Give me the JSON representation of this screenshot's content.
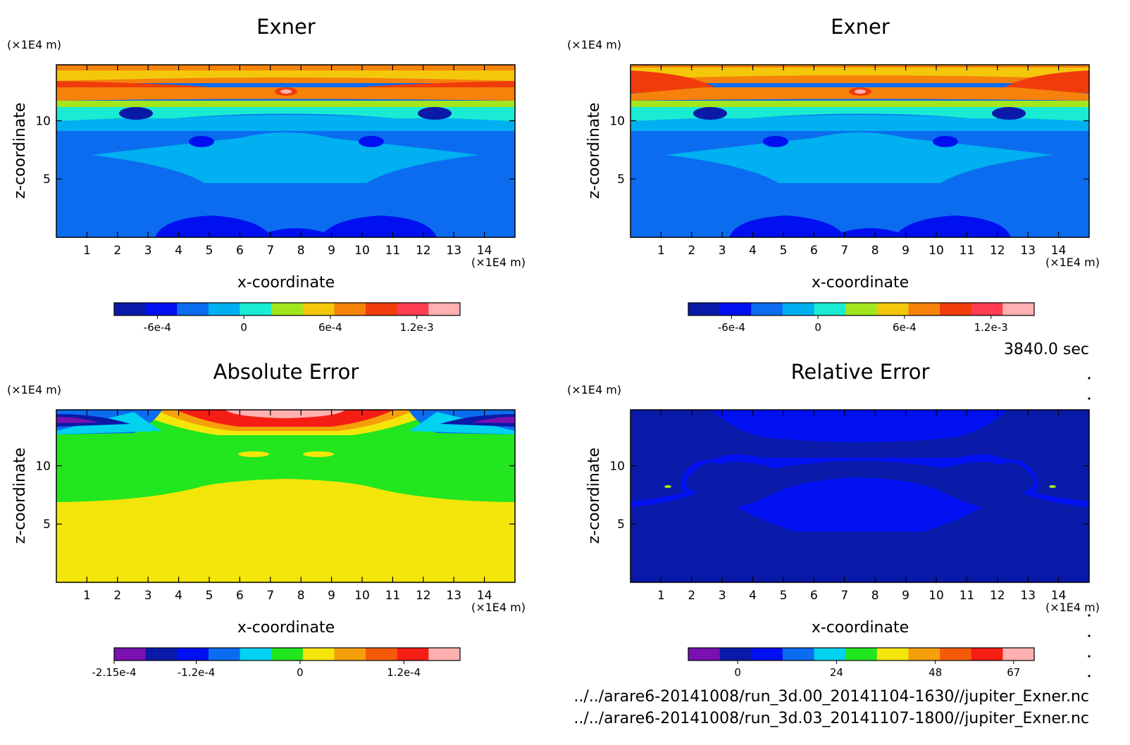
{
  "time_label": "3840.0 sec",
  "footer_lines": [
    "../../arare6-20141008/run_3d.00_20141104-1630//jupiter_Exner.nc",
    "../../arare6-20141008/run_3d.03_20141107-1800//jupiter_Exner.nc"
  ],
  "chart_data": [
    {
      "type": "heatmap",
      "title": "Exner",
      "xlabel": "x-coordinate",
      "ylabel": "z-coordinate",
      "x_unit": "(×1E4 m)",
      "y_unit": "(×1E4 m)",
      "xlim": [
        0,
        15
      ],
      "ylim": [
        0,
        14.8
      ],
      "x_ticks": [
        "1",
        "2",
        "3",
        "4",
        "5",
        "6",
        "7",
        "8",
        "9",
        "10",
        "11",
        "12",
        "13",
        "14"
      ],
      "y_ticks": [
        "5",
        "10"
      ],
      "colorbar_colors": [
        "#0a1aa8",
        "#0010f0",
        "#0c6cf0",
        "#00b0f0",
        "#19ecd2",
        "#a2e61e",
        "#f4c80a",
        "#f5820a",
        "#f03c0a",
        "#ff3c50",
        "#ffb0b0"
      ],
      "colorbar_labels": [
        "-6e-4",
        "0",
        "6e-4",
        "1.2e-3"
      ],
      "colorbar_range": [
        -0.0009,
        0.0015
      ]
    },
    {
      "type": "heatmap",
      "title": "Exner",
      "xlabel": "x-coordinate",
      "ylabel": "z-coordinate",
      "x_unit": "(×1E4 m)",
      "y_unit": "(×1E4 m)",
      "xlim": [
        0,
        15
      ],
      "ylim": [
        0,
        14.8
      ],
      "x_ticks": [
        "1",
        "2",
        "3",
        "4",
        "5",
        "6",
        "7",
        "8",
        "9",
        "10",
        "11",
        "12",
        "13",
        "14"
      ],
      "y_ticks": [
        "5",
        "10"
      ],
      "colorbar_colors": [
        "#0a1aa8",
        "#0010f0",
        "#0c6cf0",
        "#00b0f0",
        "#19ecd2",
        "#a2e61e",
        "#f4c80a",
        "#f5820a",
        "#f03c0a",
        "#ff3c50",
        "#ffb0b0"
      ],
      "colorbar_labels": [
        "-6e-4",
        "0",
        "6e-4",
        "1.2e-3"
      ],
      "colorbar_range": [
        -0.0009,
        0.0015
      ]
    },
    {
      "type": "heatmap",
      "title": "Absolute Error",
      "xlabel": "x-coordinate",
      "ylabel": "z-coordinate",
      "x_unit": "(×1E4 m)",
      "y_unit": "(×1E4 m)",
      "xlim": [
        0,
        15
      ],
      "ylim": [
        0,
        14.8
      ],
      "x_ticks": [
        "1",
        "2",
        "3",
        "4",
        "5",
        "6",
        "7",
        "8",
        "9",
        "10",
        "11",
        "12",
        "13",
        "14"
      ],
      "y_ticks": [
        "5",
        "10"
      ],
      "colorbar_colors": [
        "#7a10b0",
        "#0a1aa8",
        "#0010f0",
        "#0c6cf0",
        "#00d2f0",
        "#22e61e",
        "#f4e60a",
        "#f5a00a",
        "#f55a0a",
        "#f51e14",
        "#ffb0b0"
      ],
      "colorbar_labels": [
        "-2.15e-4",
        "-1.2e-4",
        "0",
        "1.2e-4"
      ],
      "colorbar_range": [
        -0.000215,
        0.000185
      ]
    },
    {
      "type": "heatmap",
      "title": "Relative Error",
      "xlabel": "x-coordinate",
      "ylabel": "z-coordinate",
      "x_unit": "(×1E4 m)",
      "y_unit": "(×1E4 m)",
      "xlim": [
        0,
        15
      ],
      "ylim": [
        0,
        14.8
      ],
      "x_ticks": [
        "1",
        "2",
        "3",
        "4",
        "5",
        "6",
        "7",
        "8",
        "9",
        "10",
        "11",
        "12",
        "13",
        "14"
      ],
      "y_ticks": [
        "5",
        "10"
      ],
      "colorbar_colors": [
        "#7a10b0",
        "#0a1aa8",
        "#0010f0",
        "#0c6cf0",
        "#00d2f0",
        "#22e61e",
        "#f4e60a",
        "#f5a00a",
        "#f55a0a",
        "#f51e14",
        "#ffb0b0"
      ],
      "colorbar_labels": [
        "0",
        "24",
        "48",
        "67"
      ],
      "colorbar_range": [
        -12,
        72
      ]
    }
  ]
}
